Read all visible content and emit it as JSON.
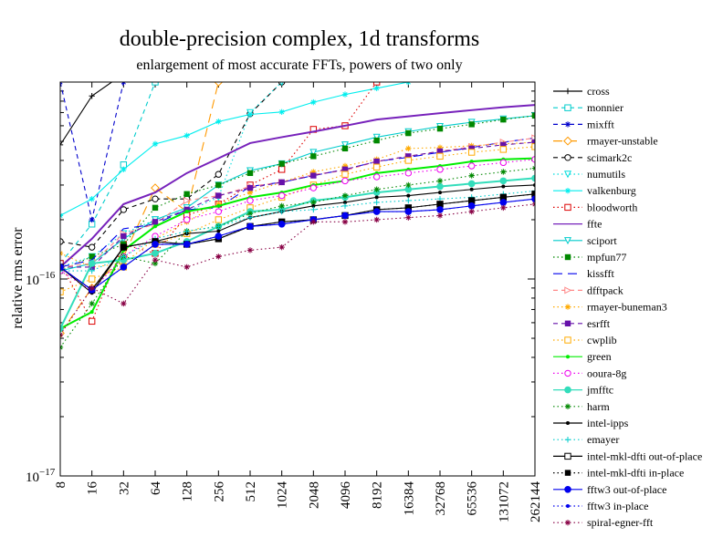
{
  "chart_data": {
    "type": "line",
    "title": "double-precision complex, 1d transforms",
    "subtitle": "enlargement of most accurate FFTs, powers of two only",
    "ylabel": "relative rms error",
    "xlabel": "",
    "yscale": "log",
    "ylim": [
      1e-17,
      1e-15
    ],
    "y_tick_labels": [
      {
        "value": 1e-16,
        "base": "10",
        "exp": "−16"
      },
      {
        "value": 1e-17,
        "base": "10",
        "exp": "−17"
      }
    ],
    "categories": [
      "8",
      "16",
      "32",
      "64",
      "128",
      "256",
      "512",
      "1024",
      "2048",
      "4096",
      "8192",
      "16384",
      "32768",
      "65536",
      "131072",
      "262144"
    ],
    "grid": false,
    "legend_position": "right",
    "series": [
      {
        "name": "cross",
        "color": "#000000",
        "style": "solid",
        "marker": "plus",
        "values": [
          4.8e-16,
          8.5e-16,
          1.1e-15,
          null,
          null,
          null,
          null,
          null,
          null,
          null,
          null,
          null,
          null,
          null,
          null,
          null
        ]
      },
      {
        "name": "monnier",
        "color": "#00cccc",
        "style": "dash",
        "marker": "square-open",
        "values": [
          1.2e-16,
          1.9e-16,
          3.8e-16,
          1e-15,
          null,
          null,
          null,
          null,
          null,
          null,
          null,
          null,
          null,
          null,
          null,
          null
        ]
      },
      {
        "name": "mixfft",
        "color": "#0000cc",
        "style": "dash",
        "marker": "star",
        "values": [
          1e-15,
          2e-16,
          1e-15,
          null,
          null,
          null,
          null,
          null,
          null,
          null,
          null,
          null,
          null,
          null,
          null,
          null
        ]
      },
      {
        "name": "rmayer-unstable",
        "color": "#ff9900",
        "style": "longdash",
        "marker": "diamond-open",
        "values": [
          5.3e-17,
          9e-17,
          1.3e-16,
          2.9e-16,
          2.2e-16,
          1e-15,
          null,
          null,
          null,
          null,
          null,
          null,
          null,
          null,
          null,
          null
        ]
      },
      {
        "name": "scimark2c",
        "color": "#000000",
        "style": "dash",
        "marker": "circle-open",
        "values": [
          1.55e-16,
          1.45e-16,
          2.25e-16,
          2.55e-16,
          2.55e-16,
          3.4e-16,
          6.9e-16,
          1e-15,
          null,
          null,
          null,
          null,
          null,
          null,
          null,
          null
        ]
      },
      {
        "name": "numutils",
        "color": "#00dddd",
        "style": "dot",
        "marker": "triangle-down",
        "values": [
          1.15e-16,
          1.3e-16,
          1.7e-16,
          2e-16,
          2.2e-16,
          2.6e-16,
          7e-16,
          1e-15,
          null,
          null,
          null,
          null,
          null,
          null,
          null,
          null
        ]
      },
      {
        "name": "valkenburg",
        "color": "#00eeee",
        "style": "solid",
        "marker": "star",
        "values": [
          2.1e-16,
          2.55e-16,
          3.6e-16,
          4.85e-16,
          5.35e-16,
          6.3e-16,
          6.85e-16,
          7.05e-16,
          7.9e-16,
          8.65e-16,
          9.3e-16,
          1e-15,
          null,
          null,
          null,
          null
        ]
      },
      {
        "name": "bloodworth",
        "color": "#dd0000",
        "style": "dot",
        "marker": "square-open",
        "values": [
          1.2e-16,
          6.1e-17,
          1.5e-16,
          1.35e-16,
          2.1e-16,
          2.4e-16,
          3e-16,
          3.6e-16,
          5.75e-16,
          6e-16,
          1e-15,
          null,
          null,
          null,
          null,
          null
        ]
      },
      {
        "name": "ffte",
        "color": "#7722bb",
        "style": "solid",
        "marker": "none",
        "values": [
          1.15e-16,
          1.6e-16,
          2.4e-16,
          2.75e-16,
          3.45e-16,
          4.1e-16,
          4.9e-16,
          5.25e-16,
          5.6e-16,
          6e-16,
          6.45e-16,
          6.7e-16,
          6.95e-16,
          7.2e-16,
          7.45e-16,
          7.65e-16
        ]
      },
      {
        "name": "sciport",
        "color": "#00cccc",
        "style": "solid",
        "marker": "triangle-down",
        "values": [
          1.1e-16,
          1.2e-16,
          1.6e-16,
          2e-16,
          2.3e-16,
          3e-16,
          3.55e-16,
          3.85e-16,
          4.4e-16,
          4.8e-16,
          5.25e-16,
          5.6e-16,
          5.95e-16,
          6.25e-16,
          6.5e-16,
          6.75e-16
        ]
      },
      {
        "name": "mpfun77",
        "color": "#008800",
        "style": "dot",
        "marker": "square",
        "values": [
          1.1e-16,
          1.3e-16,
          1.5e-16,
          2.3e-16,
          2.7e-16,
          3e-16,
          3.45e-16,
          3.85e-16,
          4.2e-16,
          4.6e-16,
          5.05e-16,
          5.5e-16,
          5.8e-16,
          6.1e-16,
          6.45e-16,
          6.75e-16
        ]
      },
      {
        "name": "kissfft",
        "color": "#0000ee",
        "style": "longdash",
        "marker": "none",
        "values": [
          1.15e-16,
          1.25e-16,
          1.8e-16,
          1.9e-16,
          2.25e-16,
          2.3e-16,
          2.95e-16,
          3.1e-16,
          3.35e-16,
          3.6e-16,
          3.95e-16,
          4.15e-16,
          4.4e-16,
          4.65e-16,
          4.95e-16,
          5.2e-16
        ]
      },
      {
        "name": "dfftpack",
        "color": "#ff8888",
        "style": "dash",
        "marker": "triangle-right",
        "values": [
          1.15e-16,
          1.2e-16,
          1.7e-16,
          1.9e-16,
          2.5e-16,
          2.65e-16,
          2.95e-16,
          3.1e-16,
          3.4e-16,
          3.55e-16,
          3.95e-16,
          4.2e-16,
          4.45e-16,
          4.7e-16,
          4.95e-16,
          5.2e-16
        ]
      },
      {
        "name": "rmayer-buneman3",
        "color": "#ffaa00",
        "style": "dot",
        "marker": "star",
        "values": [
          1.35e-16,
          1.15e-16,
          1.2e-16,
          1.6e-16,
          1.95e-16,
          2.4e-16,
          2.75e-16,
          3.1e-16,
          3.5e-16,
          3.75e-16,
          4.05e-16,
          4.6e-16,
          4.65e-16,
          4.75e-16,
          4.85e-16,
          4.95e-16
        ]
      },
      {
        "name": "esrfft",
        "color": "#6611aa",
        "style": "dash",
        "marker": "square",
        "values": [
          1.15e-16,
          1.15e-16,
          1.65e-16,
          1.95e-16,
          2.25e-16,
          2.65e-16,
          2.9e-16,
          3.1e-16,
          3.35e-16,
          3.6e-16,
          3.95e-16,
          4.2e-16,
          4.45e-16,
          4.6e-16,
          4.8e-16,
          4.95e-16
        ]
      },
      {
        "name": "cwplib",
        "color": "#ffaa00",
        "style": "dot",
        "marker": "square-open",
        "values": [
          8.6e-17,
          1e-16,
          1.15e-16,
          1.5e-16,
          1.7e-16,
          2e-16,
          2.3e-16,
          2.6e-16,
          3e-16,
          3.4e-16,
          3.7e-16,
          4e-16,
          4.2e-16,
          4.4e-16,
          4.55e-16,
          4.7e-16
        ]
      },
      {
        "name": "green",
        "color": "#00ee00",
        "style": "solid",
        "marker": "dot",
        "values": [
          5.6e-17,
          6.8e-17,
          1.4e-16,
          1.85e-16,
          2.2e-16,
          2.35e-16,
          2.6e-16,
          2.75e-16,
          3e-16,
          3.15e-16,
          3.45e-16,
          3.6e-16,
          3.75e-16,
          3.95e-16,
          4.05e-16,
          4.1e-16
        ]
      },
      {
        "name": "ooura-8g",
        "color": "#ee00ee",
        "style": "dot",
        "marker": "circle-open",
        "values": [
          1.1e-16,
          8.7e-17,
          1.3e-16,
          1.65e-16,
          2e-16,
          2.2e-16,
          2.5e-16,
          2.65e-16,
          2.9e-16,
          3.15e-16,
          3.3e-16,
          3.45e-16,
          3.6e-16,
          3.75e-16,
          3.9e-16,
          4.05e-16
        ]
      },
      {
        "name": "jmfftc",
        "color": "#33ddbb",
        "style": "solid",
        "marker": "circle",
        "values": [
          5.6e-17,
          1.2e-16,
          1.25e-16,
          1.35e-16,
          1.55e-16,
          1.85e-16,
          2.2e-16,
          2.25e-16,
          2.5e-16,
          2.6e-16,
          2.75e-16,
          2.85e-16,
          2.95e-16,
          3.05e-16,
          3.15e-16,
          3.25e-16
        ]
      },
      {
        "name": "harm",
        "color": "#008800",
        "style": "dot",
        "marker": "star",
        "values": [
          4.5e-17,
          7.5e-17,
          1.3e-16,
          1.2e-16,
          1.75e-16,
          1.85e-16,
          2.15e-16,
          2.35e-16,
          2.45e-16,
          2.65e-16,
          2.85e-16,
          3e-16,
          3.15e-16,
          3.35e-16,
          3.5e-16,
          3.65e-16
        ]
      },
      {
        "name": "intel-ipps",
        "color": "#000000",
        "style": "solid",
        "marker": "dot",
        "values": [
          1.15e-16,
          8.5e-17,
          1.45e-16,
          1.55e-16,
          1.7e-16,
          1.75e-16,
          2.05e-16,
          2.2e-16,
          2.35e-16,
          2.45e-16,
          2.6e-16,
          2.65e-16,
          2.75e-16,
          2.85e-16,
          2.95e-16,
          3e-16
        ]
      },
      {
        "name": "emayer",
        "color": "#00cccc",
        "style": "dot",
        "marker": "plus",
        "values": [
          1.1e-16,
          1.1e-16,
          1.3e-16,
          1.6e-16,
          1.75e-16,
          1.85e-16,
          2.05e-16,
          2.2e-16,
          2.25e-16,
          2.35e-16,
          2.45e-16,
          2.5e-16,
          2.55e-16,
          2.6e-16,
          2.7e-16,
          2.8e-16
        ]
      },
      {
        "name": "intel-mkl-dfti out-of-place",
        "color": "#000000",
        "style": "solid",
        "marker": "square-open",
        "values": [
          1.15e-16,
          8.8e-17,
          1.45e-16,
          1.55e-16,
          1.5e-16,
          1.6e-16,
          1.85e-16,
          1.95e-16,
          2e-16,
          2.1e-16,
          2.25e-16,
          2.3e-16,
          2.4e-16,
          2.5e-16,
          2.6e-16,
          2.7e-16
        ]
      },
      {
        "name": "intel-mkl-dfti in-place",
        "color": "#000000",
        "style": "dot",
        "marker": "square",
        "values": [
          1.15e-16,
          8.8e-17,
          1.45e-16,
          1.55e-16,
          1.5e-16,
          1.6e-16,
          1.85e-16,
          1.95e-16,
          2e-16,
          2.1e-16,
          2.25e-16,
          2.3e-16,
          2.4e-16,
          2.5e-16,
          2.6e-16,
          2.7e-16
        ]
      },
      {
        "name": "fftw3 out-of-place",
        "color": "#0000ee",
        "style": "solid",
        "marker": "circle",
        "values": [
          1.15e-16,
          8.8e-17,
          1.15e-16,
          1.5e-16,
          1.5e-16,
          1.65e-16,
          1.85e-16,
          1.9e-16,
          2e-16,
          2.1e-16,
          2.2e-16,
          2.2e-16,
          2.25e-16,
          2.35e-16,
          2.45e-16,
          2.55e-16
        ]
      },
      {
        "name": "fftw3 in-place",
        "color": "#0000ee",
        "style": "dot",
        "marker": "dot",
        "values": [
          1.15e-16,
          8.8e-17,
          1.15e-16,
          1.5e-16,
          1.5e-16,
          1.65e-16,
          1.85e-16,
          1.9e-16,
          2e-16,
          2.1e-16,
          2.2e-16,
          2.2e-16,
          2.25e-16,
          2.35e-16,
          2.45e-16,
          2.55e-16
        ]
      },
      {
        "name": "spiral-egner-fft",
        "color": "#880044",
        "style": "dot",
        "marker": "star",
        "values": [
          5.2e-17,
          9e-17,
          7.5e-17,
          1.25e-16,
          1.15e-16,
          1.3e-16,
          1.4e-16,
          1.45e-16,
          1.95e-16,
          1.95e-16,
          2e-16,
          2.05e-16,
          2.1e-16,
          2.2e-16,
          2.3e-16,
          2.4e-16
        ]
      }
    ]
  }
}
